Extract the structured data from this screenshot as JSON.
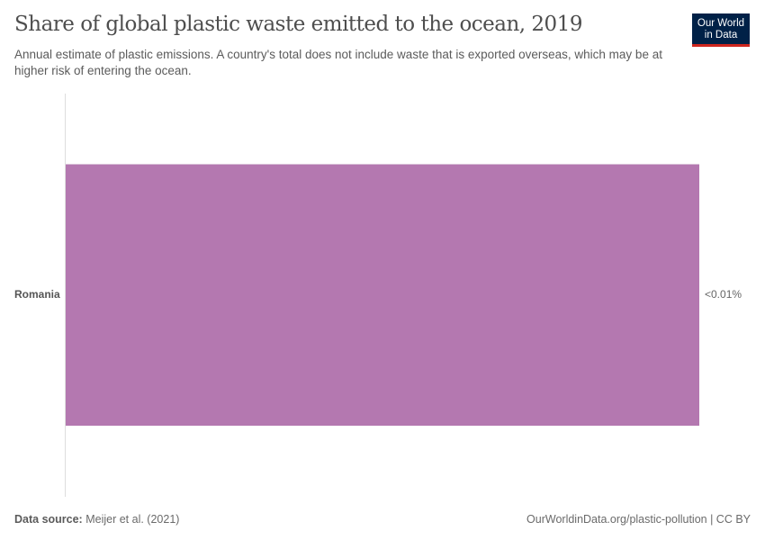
{
  "header": {
    "title": "Share of global plastic waste emitted to the ocean, 2019",
    "subtitle": "Annual estimate of plastic emissions. A country's total does not include waste that is exported overseas, which may be at higher risk of entering the ocean.",
    "logo_line1": "Our World",
    "logo_line2": "in Data"
  },
  "colors": {
    "bar": "#b478b0",
    "logo_bg": "#002147",
    "logo_accent": "#ce261e"
  },
  "chart_data": {
    "type": "bar",
    "orientation": "horizontal",
    "title": "Share of global plastic waste emitted to the ocean, 2019",
    "subtitle": "Annual estimate of plastic emissions. A country's total does not include waste that is exported overseas, which may be at higher risk of entering the ocean.",
    "categories": [
      "Romania"
    ],
    "values": [
      0.01
    ],
    "value_labels": [
      "<0.01%"
    ],
    "xlabel": "",
    "ylabel": "",
    "grid": false,
    "legend": "none"
  },
  "labels": {
    "category": "Romania",
    "value": "<0.01%"
  },
  "footer": {
    "source_label": "Data source:",
    "source_value": "Meijer et al. (2021)",
    "url_license": "OurWorldinData.org/plastic-pollution | CC BY"
  }
}
